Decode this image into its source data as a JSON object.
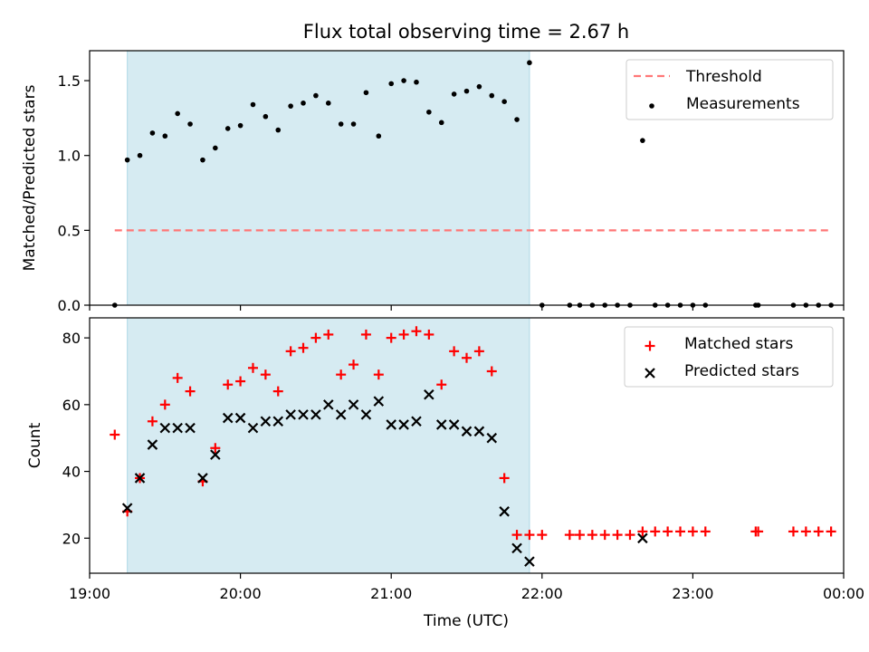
{
  "title": "Flux total observing time = 2.67 h",
  "chart_data": [
    {
      "type": "scatter",
      "ylabel": "Matched/Predicted stars",
      "ylim": [
        0,
        1.7
      ],
      "yticks": [
        "0.0",
        "0.5",
        "1.0",
        "1.5"
      ],
      "xlim": [
        "19:00",
        "00:00"
      ],
      "shaded_interval": [
        "19:15",
        "21:55"
      ],
      "legend": [
        "Threshold",
        "Measurements"
      ],
      "legend_position": "top-right",
      "threshold": {
        "name": "Threshold",
        "color": "#ff7777",
        "style": "dashed",
        "y": 0.5,
        "x": [
          "19:10",
          "23:55"
        ]
      },
      "series": [
        {
          "name": "Measurements",
          "color": "#000000",
          "marker": "dot",
          "points": [
            [
              "19:10",
              0.0
            ],
            [
              "19:15",
              0.97
            ],
            [
              "19:20",
              1.0
            ],
            [
              "19:25",
              1.15
            ],
            [
              "19:30",
              1.13
            ],
            [
              "19:35",
              1.28
            ],
            [
              "19:40",
              1.21
            ],
            [
              "19:45",
              0.97
            ],
            [
              "19:50",
              1.05
            ],
            [
              "19:55",
              1.18
            ],
            [
              "20:00",
              1.2
            ],
            [
              "20:05",
              1.34
            ],
            [
              "20:10",
              1.26
            ],
            [
              "20:15",
              1.17
            ],
            [
              "20:20",
              1.33
            ],
            [
              "20:25",
              1.35
            ],
            [
              "20:30",
              1.4
            ],
            [
              "20:35",
              1.35
            ],
            [
              "20:40",
              1.21
            ],
            [
              "20:45",
              1.21
            ],
            [
              "20:50",
              1.42
            ],
            [
              "20:55",
              1.13
            ],
            [
              "21:00",
              1.48
            ],
            [
              "21:05",
              1.5
            ],
            [
              "21:10",
              1.49
            ],
            [
              "21:15",
              1.29
            ],
            [
              "21:20",
              1.22
            ],
            [
              "21:25",
              1.41
            ],
            [
              "21:30",
              1.43
            ],
            [
              "21:35",
              1.46
            ],
            [
              "21:40",
              1.4
            ],
            [
              "21:45",
              1.36
            ],
            [
              "21:50",
              1.24
            ],
            [
              "21:55",
              1.62
            ],
            [
              "22:00",
              0.0
            ],
            [
              "22:11",
              0.0
            ],
            [
              "22:15",
              0.0
            ],
            [
              "22:20",
              0.0
            ],
            [
              "22:25",
              0.0
            ],
            [
              "22:30",
              0.0
            ],
            [
              "22:35",
              0.0
            ],
            [
              "22:40",
              1.1
            ],
            [
              "22:45",
              0.0
            ],
            [
              "22:50",
              0.0
            ],
            [
              "22:55",
              0.0
            ],
            [
              "23:00",
              0.0
            ],
            [
              "23:05",
              0.0
            ],
            [
              "23:25",
              0.0
            ],
            [
              "23:26",
              0.0
            ],
            [
              "23:40",
              0.0
            ],
            [
              "23:45",
              0.0
            ],
            [
              "23:50",
              0.0
            ],
            [
              "23:55",
              0.0
            ]
          ]
        }
      ]
    },
    {
      "type": "scatter",
      "xlabel": "Time (UTC)",
      "ylabel": "Count",
      "ylim": [
        9.5,
        86
      ],
      "yticks": [
        "20",
        "40",
        "60",
        "80"
      ],
      "xlim": [
        "19:00",
        "00:00"
      ],
      "xticks": [
        "19:00",
        "20:00",
        "21:00",
        "22:00",
        "23:00",
        "00:00"
      ],
      "shaded_interval": [
        "19:15",
        "21:55"
      ],
      "legend": [
        "Matched stars",
        "Predicted stars"
      ],
      "legend_position": "top-right",
      "series": [
        {
          "name": "Matched stars",
          "color": "#ff0000",
          "marker": "plus",
          "points": [
            [
              "19:10",
              51
            ],
            [
              "19:15",
              28
            ],
            [
              "19:20",
              38
            ],
            [
              "19:25",
              55
            ],
            [
              "19:30",
              60
            ],
            [
              "19:35",
              68
            ],
            [
              "19:40",
              64
            ],
            [
              "19:45",
              37
            ],
            [
              "19:50",
              47
            ],
            [
              "19:55",
              66
            ],
            [
              "20:00",
              67
            ],
            [
              "20:05",
              71
            ],
            [
              "20:10",
              69
            ],
            [
              "20:15",
              64
            ],
            [
              "20:20",
              76
            ],
            [
              "20:25",
              77
            ],
            [
              "20:30",
              80
            ],
            [
              "20:35",
              81
            ],
            [
              "20:40",
              69
            ],
            [
              "20:45",
              72
            ],
            [
              "20:50",
              81
            ],
            [
              "20:55",
              69
            ],
            [
              "21:00",
              80
            ],
            [
              "21:05",
              81
            ],
            [
              "21:10",
              82
            ],
            [
              "21:15",
              81
            ],
            [
              "21:20",
              66
            ],
            [
              "21:25",
              76
            ],
            [
              "21:30",
              74
            ],
            [
              "21:35",
              76
            ],
            [
              "21:40",
              70
            ],
            [
              "21:45",
              38
            ],
            [
              "21:50",
              21
            ],
            [
              "21:55",
              21
            ],
            [
              "22:00",
              21
            ],
            [
              "22:11",
              21
            ],
            [
              "22:15",
              21
            ],
            [
              "22:20",
              21
            ],
            [
              "22:25",
              21
            ],
            [
              "22:30",
              21
            ],
            [
              "22:35",
              21
            ],
            [
              "22:40",
              22
            ],
            [
              "22:45",
              22
            ],
            [
              "22:50",
              22
            ],
            [
              "22:55",
              22
            ],
            [
              "23:00",
              22
            ],
            [
              "23:05",
              22
            ],
            [
              "23:25",
              22
            ],
            [
              "23:26",
              22
            ],
            [
              "23:40",
              22
            ],
            [
              "23:45",
              22
            ],
            [
              "23:50",
              22
            ],
            [
              "23:55",
              22
            ]
          ]
        },
        {
          "name": "Predicted stars",
          "color": "#000000",
          "marker": "x",
          "points": [
            [
              "19:15",
              29
            ],
            [
              "19:20",
              38
            ],
            [
              "19:25",
              48
            ],
            [
              "19:30",
              53
            ],
            [
              "19:35",
              53
            ],
            [
              "19:40",
              53
            ],
            [
              "19:45",
              38
            ],
            [
              "19:50",
              45
            ],
            [
              "19:55",
              56
            ],
            [
              "20:00",
              56
            ],
            [
              "20:05",
              53
            ],
            [
              "20:10",
              55
            ],
            [
              "20:15",
              55
            ],
            [
              "20:20",
              57
            ],
            [
              "20:25",
              57
            ],
            [
              "20:30",
              57
            ],
            [
              "20:35",
              60
            ],
            [
              "20:40",
              57
            ],
            [
              "20:45",
              60
            ],
            [
              "20:50",
              57
            ],
            [
              "20:55",
              61
            ],
            [
              "21:00",
              54
            ],
            [
              "21:05",
              54
            ],
            [
              "21:10",
              55
            ],
            [
              "21:15",
              63
            ],
            [
              "21:20",
              54
            ],
            [
              "21:25",
              54
            ],
            [
              "21:30",
              52
            ],
            [
              "21:35",
              52
            ],
            [
              "21:40",
              50
            ],
            [
              "21:45",
              28
            ],
            [
              "21:50",
              17
            ],
            [
              "21:55",
              13
            ],
            [
              "22:40",
              20
            ]
          ]
        }
      ]
    }
  ]
}
